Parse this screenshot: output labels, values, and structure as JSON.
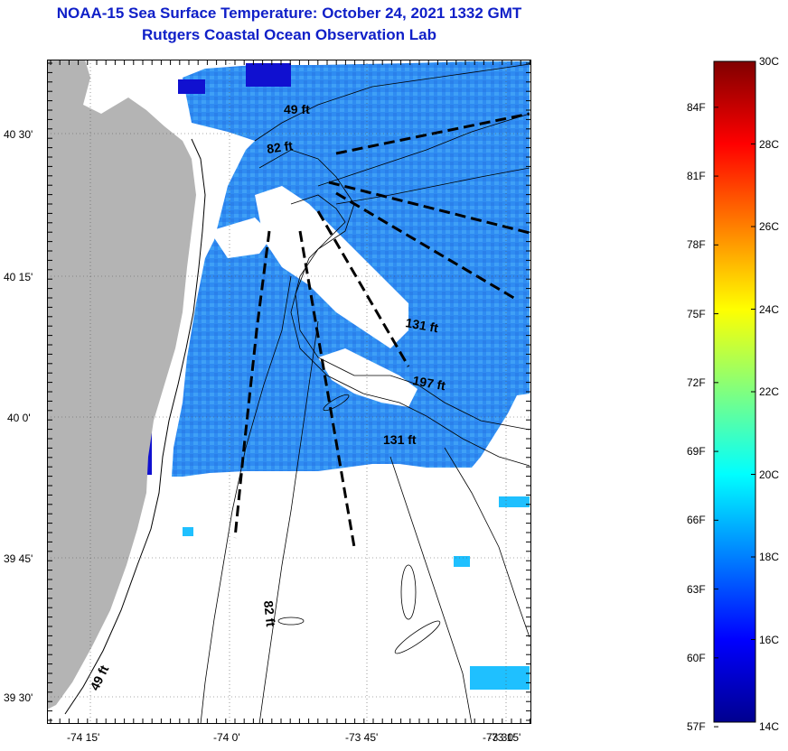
{
  "title": "NOAA-15 Sea Surface Temperature:  October 24, 2021 1332 GMT",
  "subtitle": "Rutgers Coastal Ocean Observation Lab",
  "lat_labels": [
    "40 30'",
    "40 15'",
    "40 0'",
    "39 45'",
    "39 30'"
  ],
  "lon_labels": [
    "-74 15'",
    "-74 0'",
    "-73 45'",
    "-73 30'",
    "-73 15'"
  ],
  "depth_labels": [
    "49 ft",
    "82 ft",
    "131 ft",
    "197 ft",
    "131 ft",
    "82 ft",
    "49 ft"
  ],
  "colorbar": {
    "celsius": [
      "30C",
      "28C",
      "26C",
      "24C",
      "22C",
      "20C",
      "18C",
      "16C",
      "14C"
    ],
    "fahrenheit": [
      "84F",
      "81F",
      "78F",
      "75F",
      "72F",
      "69F",
      "66F",
      "63F",
      "60F",
      "57F"
    ],
    "min_c": 14,
    "max_c": 30
  },
  "colors": {
    "title": "#1020c8",
    "land": "#b4b4b4",
    "sst_main": "#2e8cf0",
    "sst_cold": "#1010d0"
  }
}
